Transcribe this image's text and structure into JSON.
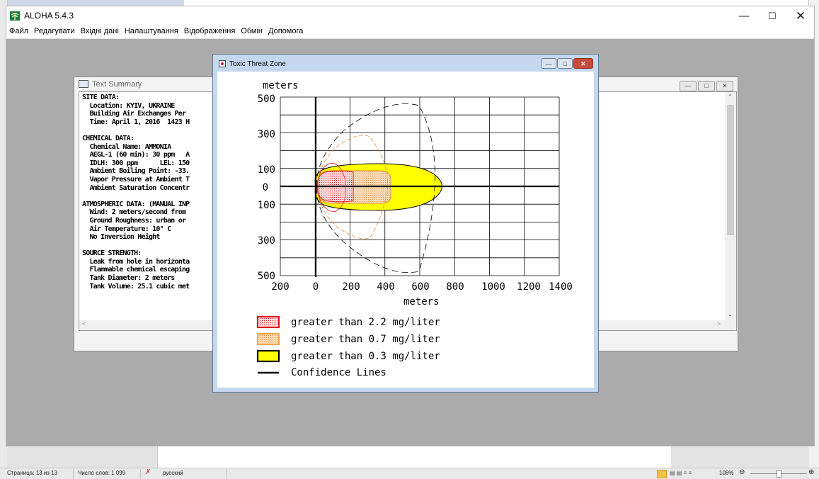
{
  "aloha": {
    "title": "ALOHA 5.4.3",
    "menu": [
      "Файл",
      "Редагувати",
      "Вхідні дані",
      "Налаштування",
      "Відображення",
      "Обмін",
      "Допомога"
    ]
  },
  "summary": {
    "title": "Text Summary",
    "lines": [
      "SITE DATA:",
      "  Location: KYIV, UKRAINE",
      "  Building Air Exchanges Per",
      "  Time: April 1, 2016  1423 H",
      "",
      "CHEMICAL DATA:",
      "  Chemical Name: AMMONIA",
      "  AEGL-1 (60 min): 30 ppm   A",
      "  IDLH: 300 ppm      LEL: 150",
      "  Ambient Boiling Point: -33.",
      "  Vapor Pressure at Ambient T",
      "  Ambient Saturation Concentr",
      "",
      "ATMOSPHERIC DATA: (MANUAL INP",
      "  Wind: 2 meters/second from",
      "  Ground Roughness: urban or",
      "  Air Temperature: 10° C",
      "  No Inversion Height",
      "",
      "SOURCE STRENGTH:",
      "  Leak from hole in horizonta",
      "  Flammable chemical escaping",
      "  Tank Diameter: 2 meters",
      "  Tank Volume: 25.1 cubic met"
    ]
  },
  "threat": {
    "title": "Toxic Threat Zone",
    "y_unit": "meters",
    "x_unit": "meters",
    "y_ticks": [
      "500",
      "300",
      "100",
      "0",
      "100",
      "300",
      "500"
    ],
    "x_ticks": [
      "200",
      "0",
      "200",
      "400",
      "600",
      "800",
      "1000",
      "1200",
      "1400"
    ],
    "legend": [
      {
        "label": "greater than 2.2 mg/liter",
        "color": "#e0161c"
      },
      {
        "label": "greater than 0.7 mg/liter",
        "color": "#f5a54a"
      },
      {
        "label": "greater than 0.3 mg/liter",
        "color": "#ffff00"
      },
      {
        "label": "Confidence Lines",
        "color": "#000000"
      }
    ]
  },
  "status": {
    "page": "Страница: 13 из 13",
    "words": "Число слов: 1 099",
    "lang": "русский",
    "zoom": "108%"
  }
}
